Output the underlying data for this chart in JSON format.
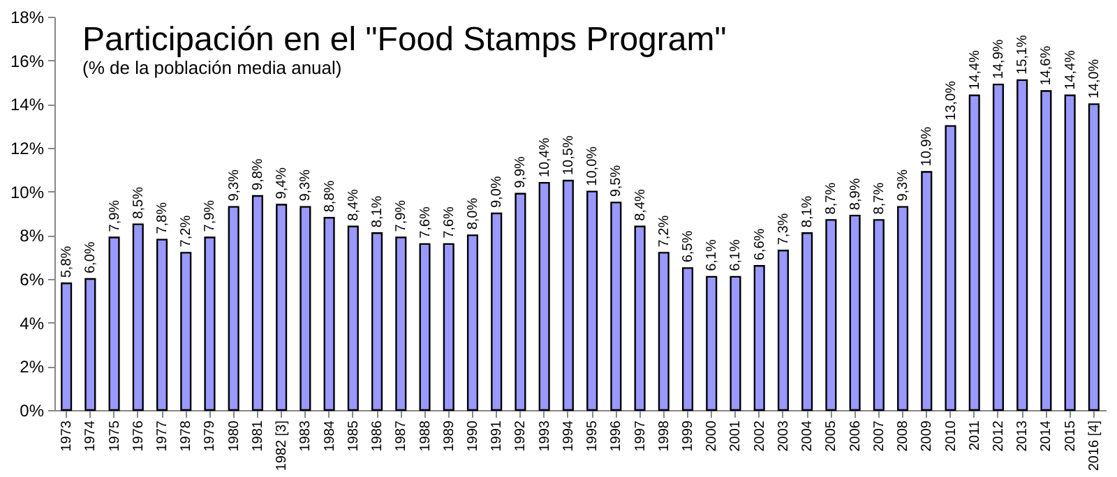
{
  "chart_data": {
    "type": "bar",
    "title": "Participación en el \"Food Stamps Program\"",
    "subtitle": "(% de la población media anual)",
    "categories": [
      "1973",
      "1974",
      "1975",
      "1976",
      "1977",
      "1978",
      "1979",
      "1980",
      "1981",
      "1982 [3]",
      "1983",
      "1984",
      "1985",
      "1986",
      "1987",
      "1988",
      "1989",
      "1990",
      "1991",
      "1992",
      "1993",
      "1994",
      "1995",
      "1996",
      "1997",
      "1998",
      "1999",
      "2000",
      "2001",
      "2002",
      "2003",
      "2004",
      "2005",
      "2006",
      "2007",
      "2008",
      "2009",
      "2010",
      "2011",
      "2012",
      "2013",
      "2014",
      "2015",
      "2016 [4]"
    ],
    "values": [
      5.8,
      6.0,
      7.9,
      8.5,
      7.8,
      7.2,
      7.9,
      9.3,
      9.8,
      9.4,
      9.3,
      8.8,
      8.4,
      8.1,
      7.9,
      7.6,
      7.6,
      8.0,
      9.0,
      9.9,
      10.4,
      10.5,
      10.0,
      9.5,
      8.4,
      7.2,
      6.5,
      6.1,
      6.1,
      6.6,
      7.3,
      8.1,
      8.7,
      8.9,
      8.7,
      9.3,
      10.9,
      13.0,
      14.4,
      14.9,
      15.1,
      14.6,
      14.4,
      14.0
    ],
    "value_labels": [
      "5,8%",
      "6,0%",
      "7,9%",
      "8,5%",
      "7,8%",
      "7,2%",
      "7,9%",
      "9,3%",
      "9,8%",
      "9,4%",
      "9,3%",
      "8,8%",
      "8,4%",
      "8,1%",
      "7,9%",
      "7,6%",
      "7,6%",
      "8,0%",
      "9,0%",
      "9,9%",
      "10,4%",
      "10,5%",
      "10,0%",
      "9,5%",
      "8,4%",
      "7,2%",
      "6,5%",
      "6,1%",
      "6,1%",
      "6,6%",
      "7,3%",
      "8,1%",
      "8,7%",
      "8,9%",
      "8,7%",
      "9,3%",
      "10,9%",
      "13,0%",
      "14,4%",
      "14,9%",
      "15,1%",
      "14,6%",
      "14,4%",
      "14,0%"
    ],
    "color": "#9999ff",
    "ylim": [
      0,
      18
    ],
    "yticks": [
      {
        "value": 0,
        "label": "0%"
      },
      {
        "value": 2,
        "label": "2%"
      },
      {
        "value": 4,
        "label": "4%"
      },
      {
        "value": 6,
        "label": "6%"
      },
      {
        "value": 8,
        "label": "8%"
      },
      {
        "value": 10,
        "label": "10%"
      },
      {
        "value": 12,
        "label": "12%"
      },
      {
        "value": 14,
        "label": "14%"
      },
      {
        "value": 16,
        "label": "16%"
      },
      {
        "value": 18,
        "label": "18%"
      }
    ],
    "ylabel": null
  }
}
